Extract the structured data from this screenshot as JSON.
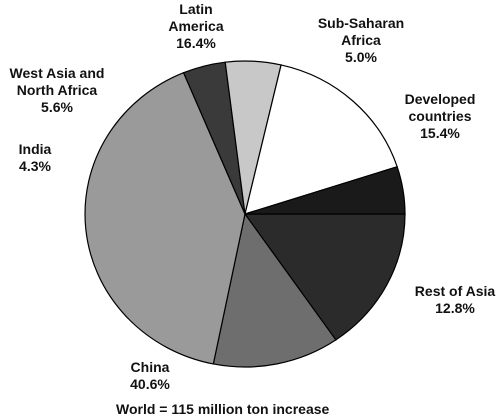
{
  "chart_data": {
    "type": "pie",
    "slices": [
      {
        "label": "Developed\ncountries",
        "value": 15.4,
        "value_text": "15.4%",
        "color": "#2b2b2b"
      },
      {
        "label": "Rest of Asia",
        "value": 12.8,
        "value_text": "12.8%",
        "color": "#6e6e6e"
      },
      {
        "label": "China",
        "value": 40.6,
        "value_text": "40.6%",
        "color": "#9a9a9a"
      },
      {
        "label": "India",
        "value": 4.3,
        "value_text": "4.3%",
        "color": "#3a3a3a"
      },
      {
        "label": "West Asia and\nNorth Africa",
        "value": 5.6,
        "value_text": "5.6%",
        "color": "#c8c8c8"
      },
      {
        "label": "Latin\nAmerica",
        "value": 16.4,
        "value_text": "16.4%",
        "color": "#ffffff"
      },
      {
        "label": "Sub-Saharan\nAfrica",
        "value": 5.0,
        "value_text": "5.0%",
        "color": "#1a1a1a"
      }
    ],
    "start_direction": "east",
    "direction": "clockwise",
    "legend": "none",
    "footnote": "World = 115 million ton increase"
  }
}
